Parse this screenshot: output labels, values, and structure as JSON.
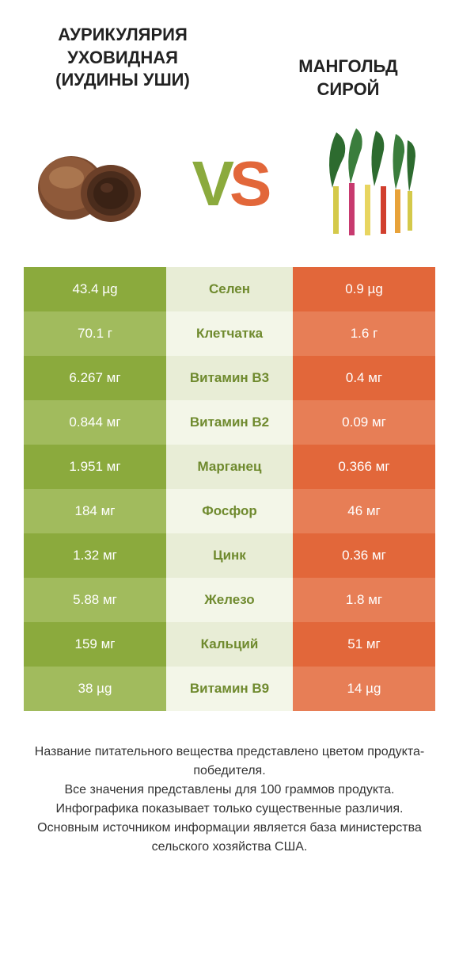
{
  "titles": {
    "left": "АУРИКУЛЯРИЯ УХОВИДНАЯ (ИУДИНЫ УШИ)",
    "right": "МАНГОЛЬД СИРОЙ"
  },
  "vs": {
    "v": "V",
    "s": "S"
  },
  "colors": {
    "green_dark": "#8baa3d",
    "green_light": "#a1bb5d",
    "mid_dark": "#e8edd6",
    "mid_light": "#f3f6e8",
    "mid_text": "#6f8a2e",
    "orange_dark": "#e2673a",
    "orange_light": "#e77e56"
  },
  "rows": [
    {
      "left": "43.4 µg",
      "label": "Селен",
      "right": "0.9 µg"
    },
    {
      "left": "70.1 г",
      "label": "Клетчатка",
      "right": "1.6 г"
    },
    {
      "left": "6.267 мг",
      "label": "Витамин B3",
      "right": "0.4 мг"
    },
    {
      "left": "0.844 мг",
      "label": "Витамин B2",
      "right": "0.09 мг"
    },
    {
      "left": "1.951 мг",
      "label": "Марганец",
      "right": "0.366 мг"
    },
    {
      "left": "184 мг",
      "label": "Фосфор",
      "right": "46 мг"
    },
    {
      "left": "1.32 мг",
      "label": "Цинк",
      "right": "0.36 мг"
    },
    {
      "left": "5.88 мг",
      "label": "Железо",
      "right": "1.8 мг"
    },
    {
      "left": "159 мг",
      "label": "Кальций",
      "right": "51 мг"
    },
    {
      "left": "38 µg",
      "label": "Витамин B9",
      "right": "14 µg"
    }
  ],
  "footer": {
    "line1": "Название питательного вещества представлено цветом продукта-победителя.",
    "line2": "Все значения представлены для 100 граммов продукта.",
    "line3": "Инфографика показывает только существенные различия.",
    "line4": "Основным источником информации является база министерства сельского хозяйства США."
  }
}
